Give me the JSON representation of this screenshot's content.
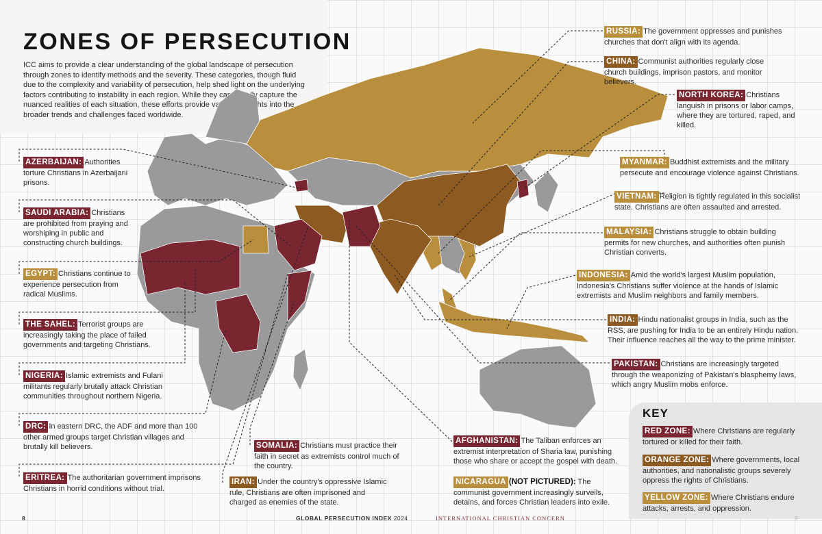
{
  "title": "ZONES OF PERSECUTION",
  "intro": "ICC aims to provide a clear understanding of the global landscape of persecution through zones to identify methods and the severity. These categories, though fluid due to the complexity and variability of persecution, help shed light on the underlying factors contributing to instability in each region. While they cannot fully capture the nuanced realities of each situation, these efforts provide valuable insights into the broader trends and challenges faced worldwide.",
  "colors": {
    "red": "#7a2631",
    "orange": "#8d5a21",
    "yellow": "#b98f3e",
    "gray": "#9a9a9c"
  },
  "countries": {
    "azerbaijan": {
      "label": "AZERBAIJAN:",
      "text": "Authorities torture Christians in Azerbaijani prisons.",
      "zone": "red"
    },
    "saudi": {
      "label": "SAUDI ARABIA:",
      "text": "Christians are prohibited from praying and worshiping in public and constructing church buildings.",
      "zone": "red"
    },
    "egypt": {
      "label": "EGYPT:",
      "text": "Christians continue to experience persecution from radical Muslims.",
      "zone": "yellow"
    },
    "sahel": {
      "label": "THE SAHEL:",
      "text": "Terrorist groups are increasingly taking the place of failed governments and targeting Christians.",
      "zone": "red"
    },
    "nigeria": {
      "label": "NIGERIA:",
      "text": "Islamic extremists and Fulani militants regularly brutally attack Christian communities throughout northern Nigeria.",
      "zone": "red"
    },
    "drc": {
      "label": "DRC:",
      "text": "In eastern DRC, the ADF and more than 100 other armed groups target Christian villages and brutally kill believers.",
      "zone": "red"
    },
    "eritrea": {
      "label": "ERITREA:",
      "text": "The authoritarian government imprisons Christians in horrid conditions without trial.",
      "zone": "red"
    },
    "somalia": {
      "label": "SOMALIA:",
      "text": "Christians must practice their faith in secret as extremists control much of the country.",
      "zone": "red"
    },
    "iran": {
      "label": "IRAN:",
      "text": "Under the country's oppressive Islamic rule, Christians are often imprisoned and charged as enemies of the state.",
      "zone": "orange"
    },
    "russia": {
      "label": "RUSSIA:",
      "text": "The government oppresses and punishes churches that don't align with its agenda.",
      "zone": "yellow"
    },
    "china": {
      "label": "CHINA:",
      "text": "Communist authorities regularly close church buildings, imprison pastors, and monitor believers.",
      "zone": "orange"
    },
    "nkorea": {
      "label": "NORTH KOREA:",
      "text": "Christians languish in prisons or labor camps, where they are tortured, raped, and killed.",
      "zone": "red"
    },
    "myanmar": {
      "label": "MYANMAR:",
      "text": "Buddhist extremists and the military persecute and encourage violence against Christians.",
      "zone": "yellow"
    },
    "vietnam": {
      "label": "VIETNAM:",
      "text": "Religion is tightly regulated in this socialist state. Christians are often assaulted and arrested.",
      "zone": "yellow"
    },
    "malaysia": {
      "label": "MALAYSIA:",
      "text": "Christians struggle to obtain building permits for new churches, and authorities often punish Christian converts.",
      "zone": "yellow"
    },
    "indonesia": {
      "label": "INDONESIA:",
      "text": "Amid the world's largest Muslim population, Indonesia's Christians suffer violence at the hands of Islamic extremists and Muslim neighbors and family members.",
      "zone": "yellow"
    },
    "india": {
      "label": "INDIA:",
      "text": "Hindu nationalist groups in India, such as the RSS, are pushing for India to be an entirely Hindu nation. Their influence reaches all the way to the prime minister.",
      "zone": "orange"
    },
    "pakistan": {
      "label": "PAKISTAN:",
      "text": "Christians are increasingly targeted through the weaponizing of Pakistan's blasphemy laws, which angry Muslim mobs enforce.",
      "zone": "red"
    },
    "afghanistan": {
      "label": "AFGHANISTAN:",
      "text": "The Taliban enforces an extremist interpretation of Sharia law, punishing those who share or accept the gospel with death.",
      "zone": "red"
    },
    "nicaragua": {
      "label": "NICARAGUA",
      "note": "(NOT PICTURED):",
      "text": "The communist government increasingly surveils, detains, and forces Christian leaders into exile.",
      "zone": "yellow"
    }
  },
  "key": {
    "title": "KEY",
    "red": {
      "label": "RED ZONE:",
      "text": "Where Christians are regularly tortured or killed for their faith."
    },
    "orange": {
      "label": "ORANGE ZONE:",
      "text": "Where governments, local authorities, and nationalistic groups severely oppress the rights of Christians."
    },
    "yellow": {
      "label": "YELLOW ZONE:",
      "text": "Where Christians endure attacks, arrests, and oppression."
    }
  },
  "footer": {
    "left_page": "8",
    "center": "GLOBAL PERSECUTION INDEX",
    "year": "2024",
    "org": "INTERNATIONAL CHRISTIAN CONCERN",
    "right_page": "9"
  }
}
